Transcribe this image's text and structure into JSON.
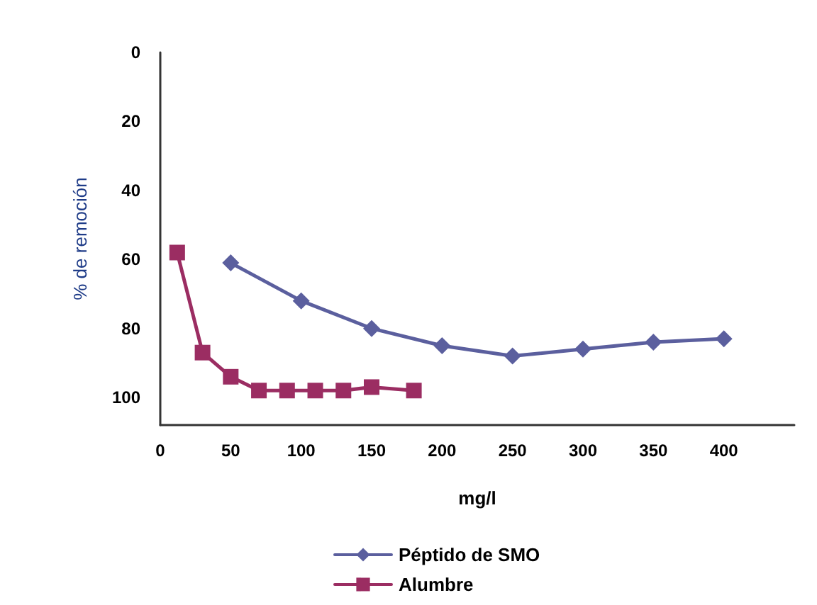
{
  "chart_data": {
    "type": "line",
    "xlabel": "mg/l",
    "ylabel": "% de remoción",
    "xlim": [
      0,
      450
    ],
    "xticks": [
      0,
      50,
      100,
      150,
      200,
      250,
      300,
      350,
      400
    ],
    "ylim": [
      108,
      0
    ],
    "yticks": [
      0,
      20,
      40,
      60,
      80,
      100
    ],
    "series": [
      {
        "name": "Péptido de SMO",
        "color": "#5b5f9e",
        "marker": "diamond",
        "x": [
          50,
          100,
          150,
          200,
          250,
          300,
          350,
          400
        ],
        "values": [
          61,
          72,
          80,
          85,
          88,
          86,
          84,
          83
        ]
      },
      {
        "name": "Alumbre",
        "color": "#9b2d62",
        "marker": "square",
        "x": [
          12,
          30,
          50,
          70,
          90,
          110,
          130,
          150,
          180
        ],
        "values": [
          58,
          87,
          94,
          98,
          98,
          98,
          98,
          97,
          98
        ]
      }
    ],
    "grid": false,
    "legend": "bottom",
    "line_style": "solid"
  }
}
